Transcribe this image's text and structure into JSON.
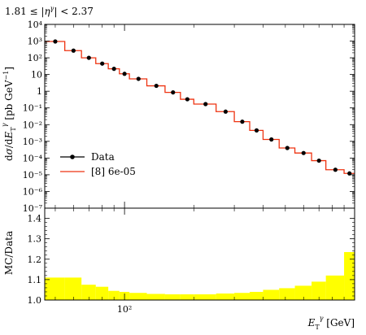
{
  "chart_data": [
    {
      "type": "line",
      "panel": "main",
      "title": "1.81 ≤ |η^γ| < 2.37",
      "ylabel": "dσ/dE_T^γ [pb GeV⁻¹]",
      "yscale": "log",
      "ylim": [
        1e-07,
        10000.0
      ],
      "xlim": [
        45,
        1000
      ],
      "xscale": "log",
      "x_tick_labels": [
        {
          "value": 100,
          "label": "10²"
        }
      ],
      "y_tick_labels": [
        {
          "exp": 4,
          "label": "10⁴"
        },
        {
          "exp": 3,
          "label": "10³"
        },
        {
          "exp": 2,
          "label": "10²"
        },
        {
          "exp": 1,
          "label": "10"
        },
        {
          "exp": 0,
          "label": "1"
        },
        {
          "exp": -1,
          "label": "10⁻¹"
        },
        {
          "exp": -2,
          "label": "10⁻²"
        },
        {
          "exp": -3,
          "label": "10⁻³"
        },
        {
          "exp": -4,
          "label": "10⁻⁴"
        },
        {
          "exp": -5,
          "label": "10⁻⁵"
        },
        {
          "exp": -6,
          "label": "10⁻⁶"
        },
        {
          "exp": -7,
          "label": "10⁻⁷"
        }
      ],
      "legend": {
        "placement": "bottom-left",
        "entries": [
          {
            "label": "Data",
            "style": "marker"
          },
          {
            "label": "[8] 6e-05",
            "style": "line"
          }
        ]
      },
      "bin_edges": [
        45,
        55,
        65,
        75,
        85,
        95,
        105,
        125,
        150,
        175,
        200,
        250,
        300,
        350,
        400,
        470,
        550,
        650,
        750,
        900,
        1000
      ],
      "series": [
        {
          "name": "Data",
          "style": "points",
          "color": "#000000",
          "x": [
            50,
            60,
            70,
            80,
            90,
            100,
            115,
            137.5,
            162.5,
            187.5,
            225,
            275,
            325,
            375,
            435,
            510,
            600,
            700,
            825,
            950
          ],
          "y": [
            950,
            270,
            100,
            45,
            22,
            11,
            5.5,
            2.1,
            0.85,
            0.33,
            0.17,
            0.06,
            0.015,
            0.0045,
            0.0013,
            0.0004,
            0.0002,
            7e-05,
            2e-05,
            1.2e-05
          ]
        },
        {
          "name": "[8] 6e-05",
          "style": "histogram",
          "color": "#ee3311",
          "values": [
            950,
            270,
            100,
            45,
            22,
            11,
            5.5,
            2.1,
            0.85,
            0.33,
            0.17,
            0.06,
            0.015,
            0.0045,
            0.0013,
            0.0004,
            0.0002,
            7e-05,
            2e-05,
            1.2e-05
          ]
        }
      ]
    },
    {
      "type": "bar",
      "panel": "ratio",
      "ylabel": "MC/Data",
      "xlabel": "E_T^γ [GeV]",
      "ylim": [
        1.0,
        1.45
      ],
      "y_ticks": [
        1.0,
        1.1,
        1.2,
        1.3,
        1.4
      ],
      "y_tick_labels": [
        "1.0",
        "1.1",
        "1.2",
        "1.3",
        "1.4"
      ],
      "fill_color": "#ffff00",
      "bin_edges": [
        45,
        55,
        65,
        75,
        85,
        95,
        105,
        125,
        150,
        175,
        200,
        250,
        300,
        350,
        400,
        470,
        550,
        650,
        750,
        900,
        1000
      ],
      "values": [
        1.11,
        1.11,
        1.075,
        1.065,
        1.045,
        1.04,
        1.035,
        1.03,
        1.028,
        1.028,
        1.028,
        1.032,
        1.035,
        1.04,
        1.05,
        1.058,
        1.07,
        1.09,
        1.12,
        1.235
      ]
    }
  ]
}
